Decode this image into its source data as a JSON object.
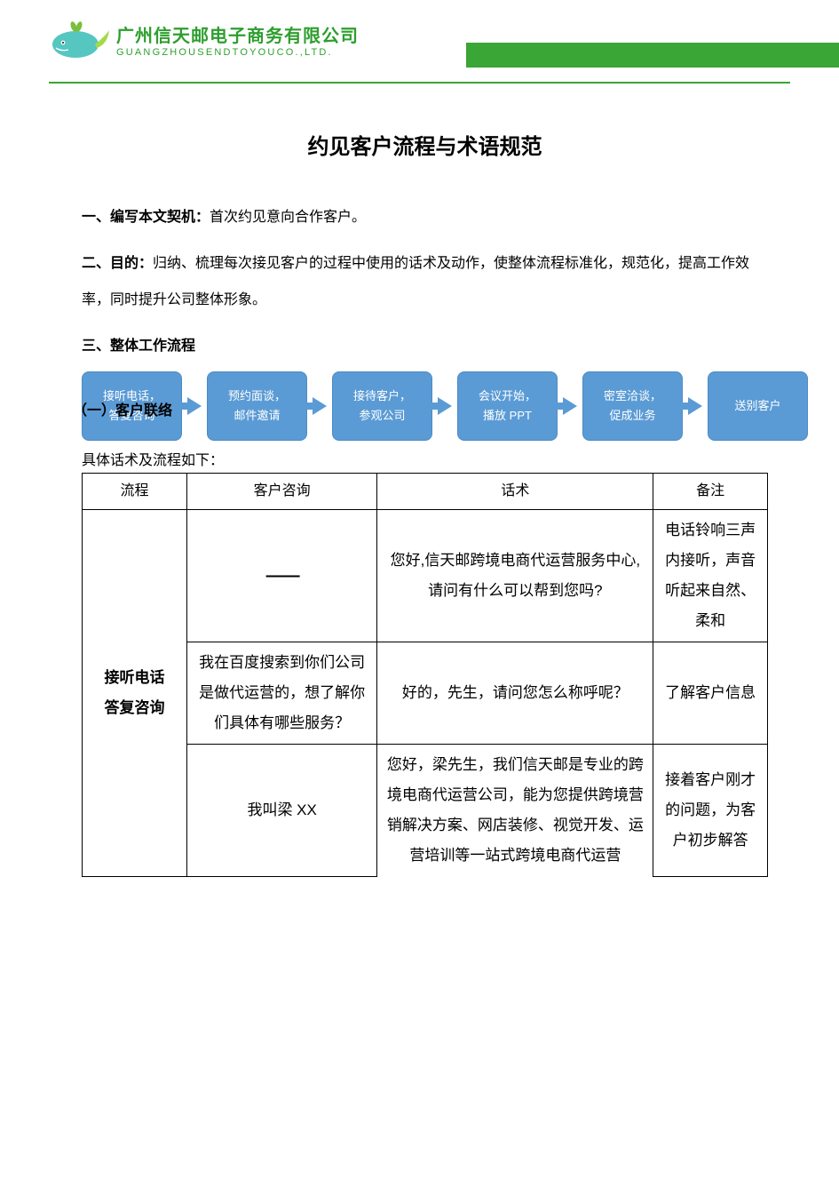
{
  "header": {
    "company_cn": "广州信天邮电子商务有限公司",
    "company_en": "GUANGZHOUSENDTOYOUCO.,LTD.",
    "logo_colors": {
      "body": "#55c6c0",
      "fin": "#a6d94a",
      "leaf": "#7bbf3a"
    },
    "stripe_color": "#3aa635"
  },
  "doc": {
    "title": "约见客户流程与术语规范",
    "section1_label": "一、编写本文契机：",
    "section1_text": "首次约见意向合作客户。",
    "section2_label": "二、目的：",
    "section2_text": "归纳、梳理每次接见客户的过程中使用的话术及动作，使整体流程标准化，规范化，提高工作效率，同时提升公司整体形象。",
    "section3_label": "三、整体工作流程",
    "overlay1": "（一）客户联络",
    "overlay2": "具体话术及流程如下："
  },
  "flow": {
    "box_color": "#5b9bd5",
    "text_color": "#ffffff",
    "steps": [
      "接听电话，\n答复咨询",
      "预约面谈，\n邮件邀请",
      "接待客户，\n参观公司",
      "会议开始，\n播放 PPT",
      "密室洽谈，\n促成业务",
      "送别客户"
    ]
  },
  "table": {
    "headers": [
      "流程",
      "客户咨询",
      "话术",
      "备注"
    ],
    "process_label": "接听电话\n答复咨询",
    "rows": [
      {
        "ask": "——",
        "talk": "您好,信天邮跨境电商代运营服务中心,请问有什么可以帮到您吗?",
        "note": "电话铃响三声内接听，声音听起来自然、柔和"
      },
      {
        "ask": "我在百度搜索到你们公司是做代运营的，想了解你们具体有哪些服务？",
        "talk": "好的，先生，请问您怎么称呼呢？",
        "note": "了解客户信息"
      },
      {
        "ask": "我叫梁 XX",
        "talk": "您好，梁先生，我们信天邮是专业的跨境电商代运营公司，能为您提供跨境营销解决方案、网店装修、视觉开发、运营培训等一站式跨境电商代运营",
        "note": "接着客户刚才的问题，为客户初步解答"
      }
    ]
  }
}
